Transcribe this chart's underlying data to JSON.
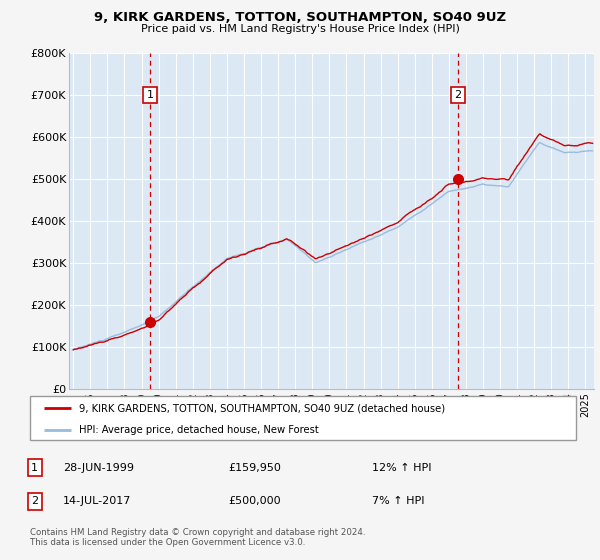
{
  "title": "9, KIRK GARDENS, TOTTON, SOUTHAMPTON, SO40 9UZ",
  "subtitle": "Price paid vs. HM Land Registry's House Price Index (HPI)",
  "background_color": "#cfdded",
  "plot_bg_color": "#dce9f5",
  "fig_bg_color": "#f5f5f5",
  "grid_color": "#ffffff",
  "line1_color": "#cc0000",
  "line2_color": "#99bbdd",
  "ylim": [
    0,
    800000
  ],
  "yticks": [
    0,
    100000,
    200000,
    300000,
    400000,
    500000,
    600000,
    700000,
    800000
  ],
  "ytick_labels": [
    "£0",
    "£100K",
    "£200K",
    "£300K",
    "£400K",
    "£500K",
    "£600K",
    "£700K",
    "£800K"
  ],
  "sale1_date_num": 1999.49,
  "sale1_price": 159950,
  "sale2_date_num": 2017.54,
  "sale2_price": 500000,
  "sale1_label": "28-JUN-1999",
  "sale1_price_str": "£159,950",
  "sale1_hpi": "12% ↑ HPI",
  "sale2_label": "14-JUL-2017",
  "sale2_price_str": "£500,000",
  "sale2_hpi": "7% ↑ HPI",
  "legend1_label": "9, KIRK GARDENS, TOTTON, SOUTHAMPTON, SO40 9UZ (detached house)",
  "legend2_label": "HPI: Average price, detached house, New Forest",
  "footer": "Contains HM Land Registry data © Crown copyright and database right 2024.\nThis data is licensed under the Open Government Licence v3.0.",
  "xmin": 1994.75,
  "xmax": 2025.5
}
